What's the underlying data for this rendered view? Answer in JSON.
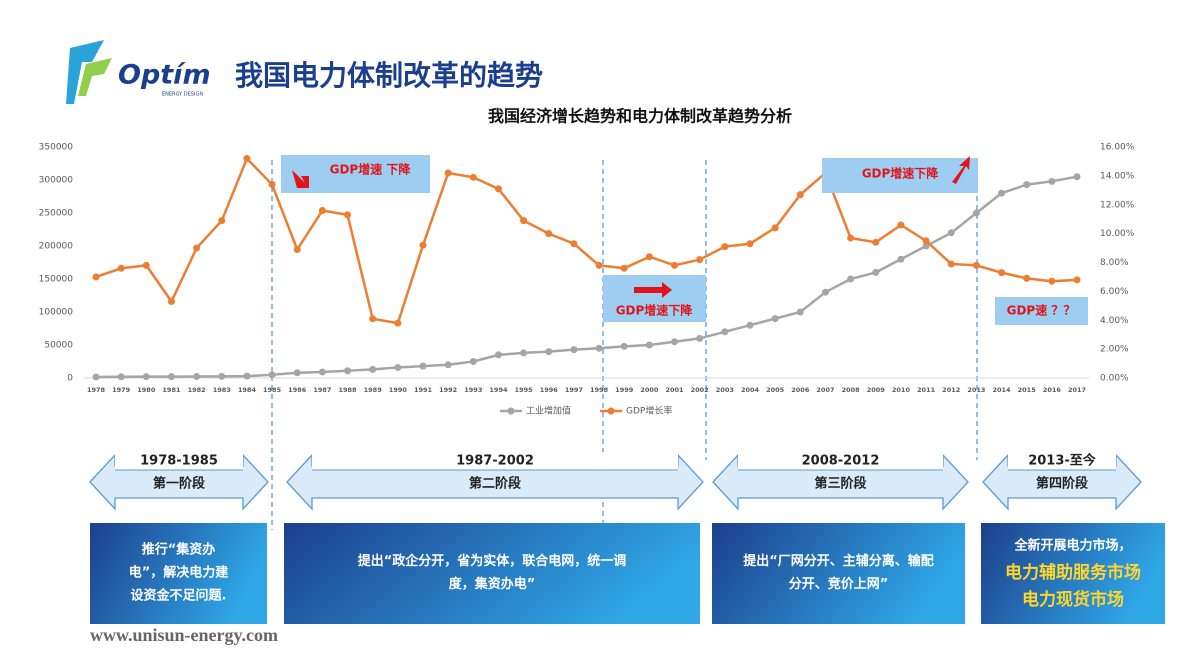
{
  "header": {
    "logo_text": "Optím",
    "logo_sub": "ENERGY DESIGN",
    "title": "我国电力体制改革的趋势",
    "subtitle": "我国经济增长趋势和电力体制改革趋势分析"
  },
  "chart_data": {
    "type": "line",
    "categories": [
      "1978",
      "1979",
      "1980",
      "1981",
      "1982",
      "1983",
      "1984",
      "1985",
      "1986",
      "1987",
      "1988",
      "1989",
      "1990",
      "1991",
      "1992",
      "1993",
      "1994",
      "1995",
      "1996",
      "1997",
      "1998",
      "1999",
      "2000",
      "2001",
      "2002",
      "2003",
      "2004",
      "2005",
      "2006",
      "2007",
      "2008",
      "2009",
      "2010",
      "2011",
      "2012",
      "2013",
      "2014",
      "2015",
      "2016",
      "2017"
    ],
    "series": [
      {
        "name": "工业增加值",
        "color": "#a5a5a5",
        "values": [
          1600,
          1800,
          2000,
          2000,
          2200,
          2400,
          2800,
          5000,
          8000,
          9000,
          11000,
          13000,
          16000,
          18000,
          20000,
          25000,
          35000,
          38000,
          40000,
          43000,
          45000,
          48000,
          50000,
          55000,
          60000,
          70000,
          80000,
          90000,
          100000,
          130000,
          150000,
          160000,
          180000,
          200000,
          220000,
          250000,
          280000,
          293000,
          298000,
          305000
        ]
      },
      {
        "name": "GDP增长率",
        "color": "#ed7d31",
        "axis": "y2",
        "values": [
          7.0,
          7.6,
          7.8,
          5.3,
          9.0,
          10.9,
          15.2,
          13.4,
          8.9,
          11.6,
          11.3,
          4.1,
          3.8,
          9.2,
          14.2,
          13.9,
          13.1,
          10.9,
          10.0,
          9.3,
          7.8,
          7.6,
          8.4,
          7.8,
          8.2,
          9.1,
          9.3,
          10.4,
          12.7,
          14.2,
          9.7,
          9.4,
          10.6,
          9.5,
          7.9,
          7.8,
          7.3,
          6.9,
          6.7,
          6.8
        ]
      }
    ],
    "ylim": [
      0,
      350000
    ],
    "yticks": [
      0,
      50000,
      100000,
      150000,
      200000,
      250000,
      300000,
      350000
    ],
    "y2lim": [
      0,
      16
    ],
    "y2ticks": [
      {
        "value": 0,
        "label": "0.00%"
      },
      {
        "value": 2,
        "label": "2.00%"
      },
      {
        "value": 4,
        "label": "4.00%"
      },
      {
        "value": 6,
        "label": "6.00%"
      },
      {
        "value": 8,
        "label": "8.00%"
      },
      {
        "value": 10,
        "label": "10.00%"
      },
      {
        "value": 12,
        "label": "12.00%"
      },
      {
        "value": 14,
        "label": "14.00%"
      },
      {
        "value": 16,
        "label": "16.00%"
      }
    ],
    "legend": "bottom",
    "annotations": [
      "GDP增速 下降",
      "GDP增速下降",
      "GDP增速下降",
      "GDP速 ？？"
    ]
  },
  "stages": [
    {
      "years": "1978-1985",
      "name": "第一阶段",
      "description": [
        "推行“集资办",
        "电”，解决电力建",
        "设资金不足问题."
      ]
    },
    {
      "years": "1987-2002",
      "name": "第二阶段",
      "description": [
        "提出“政企分开，省为实体，联合电网，统一调",
        "度，集资办电”"
      ]
    },
    {
      "years": "2008-2012",
      "name": "第三阶段",
      "description": [
        "提出“厂网分开、主辅分离、输配",
        "分开、竞价上网”"
      ]
    },
    {
      "years": "2013-至今",
      "name": "第四阶段",
      "description": [
        "全新开展电力市场，",
        "电力辅助服务市场",
        "电力现货市场"
      ]
    }
  ],
  "footer": "www.unisun-energy.com"
}
